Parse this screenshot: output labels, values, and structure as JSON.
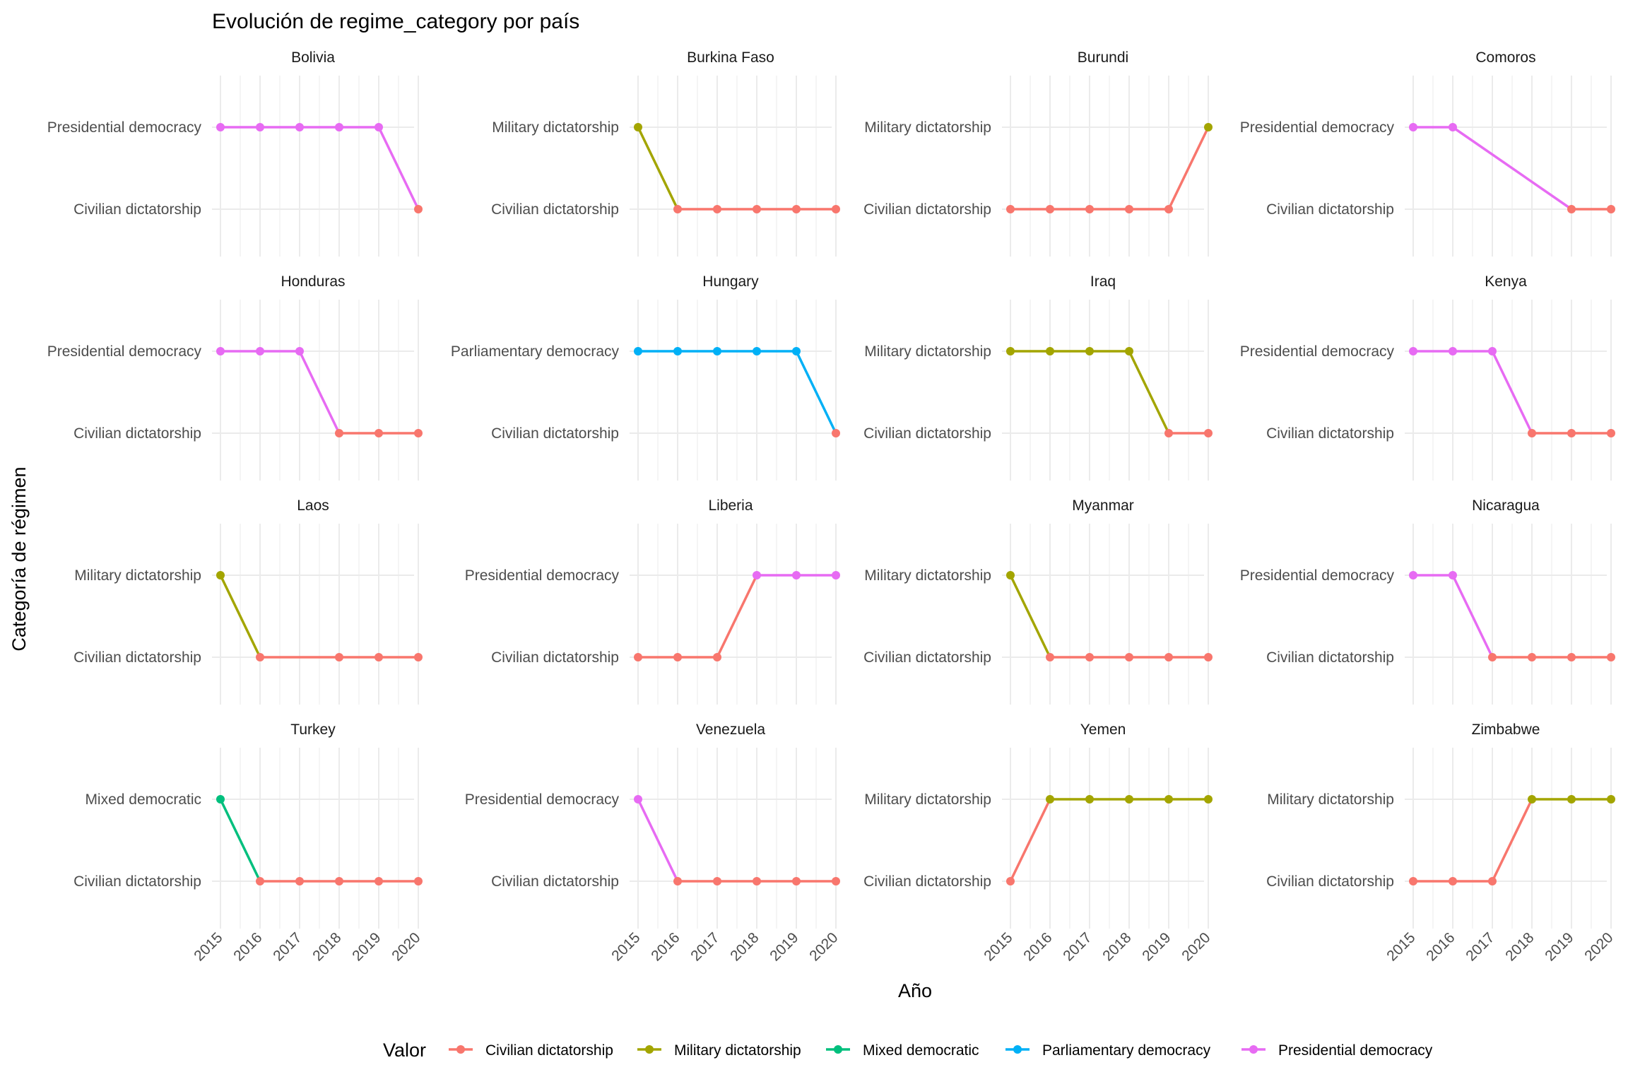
{
  "chart_data": {
    "type": "line",
    "title": "Evolución de regime_category por país",
    "xlabel": "Año",
    "ylabel": "Categoría de régimen",
    "x": [
      2015,
      2016,
      2017,
      2018,
      2019,
      2020
    ],
    "x_tick_labels": [
      "2015",
      "2016",
      "2017",
      "2018",
      "2019",
      "2020"
    ],
    "facet_layout": "4 rows x 4 columns, independent y scales",
    "grid": true,
    "legend": {
      "title": "Valor",
      "placement": "bottom",
      "entries": [
        {
          "label": "Civilian dictatorship",
          "color": "#F8766D"
        },
        {
          "label": "Military dictatorship",
          "color": "#A3A500"
        },
        {
          "label": "Mixed democratic",
          "color": "#00BF7D"
        },
        {
          "label": "Parliamentary democracy",
          "color": "#00B0F6"
        },
        {
          "label": "Presidential democracy",
          "color": "#E76BF3"
        }
      ]
    },
    "panels": [
      {
        "country": "Bolivia",
        "levels": [
          "Civilian dictatorship",
          "Presidential democracy"
        ],
        "values": [
          "Presidential democracy",
          "Presidential democracy",
          "Presidential democracy",
          "Presidential democracy",
          "Presidential democracy",
          "Civilian dictatorship"
        ]
      },
      {
        "country": "Burkina Faso",
        "levels": [
          "Civilian dictatorship",
          "Military dictatorship"
        ],
        "values": [
          "Military dictatorship",
          "Civilian dictatorship",
          "Civilian dictatorship",
          "Civilian dictatorship",
          "Civilian dictatorship",
          "Civilian dictatorship"
        ]
      },
      {
        "country": "Burundi",
        "levels": [
          "Civilian dictatorship",
          "Military dictatorship"
        ],
        "values": [
          "Civilian dictatorship",
          "Civilian dictatorship",
          "Civilian dictatorship",
          "Civilian dictatorship",
          "Civilian dictatorship",
          "Military dictatorship"
        ]
      },
      {
        "country": "Comoros",
        "levels": [
          "Civilian dictatorship",
          "Presidential democracy"
        ],
        "values": [
          "Presidential democracy",
          "Presidential democracy",
          null,
          null,
          "Civilian dictatorship",
          "Civilian dictatorship"
        ]
      },
      {
        "country": "Honduras",
        "levels": [
          "Civilian dictatorship",
          "Presidential democracy"
        ],
        "values": [
          "Presidential democracy",
          "Presidential democracy",
          "Presidential democracy",
          "Civilian dictatorship",
          "Civilian dictatorship",
          "Civilian dictatorship"
        ]
      },
      {
        "country": "Hungary",
        "levels": [
          "Civilian dictatorship",
          "Parliamentary democracy"
        ],
        "values": [
          "Parliamentary democracy",
          "Parliamentary democracy",
          "Parliamentary democracy",
          "Parliamentary democracy",
          "Parliamentary democracy",
          "Civilian dictatorship"
        ]
      },
      {
        "country": "Iraq",
        "levels": [
          "Civilian dictatorship",
          "Military dictatorship"
        ],
        "values": [
          "Military dictatorship",
          "Military dictatorship",
          "Military dictatorship",
          "Military dictatorship",
          "Civilian dictatorship",
          "Civilian dictatorship"
        ]
      },
      {
        "country": "Kenya",
        "levels": [
          "Civilian dictatorship",
          "Presidential democracy"
        ],
        "values": [
          "Presidential democracy",
          "Presidential democracy",
          "Presidential democracy",
          "Civilian dictatorship",
          "Civilian dictatorship",
          "Civilian dictatorship"
        ]
      },
      {
        "country": "Laos",
        "levels": [
          "Civilian dictatorship",
          "Military dictatorship"
        ],
        "values": [
          "Military dictatorship",
          "Civilian dictatorship",
          null,
          "Civilian dictatorship",
          "Civilian dictatorship",
          "Civilian dictatorship"
        ]
      },
      {
        "country": "Liberia",
        "levels": [
          "Civilian dictatorship",
          "Presidential democracy"
        ],
        "values": [
          "Civilian dictatorship",
          "Civilian dictatorship",
          "Civilian dictatorship",
          "Presidential democracy",
          "Presidential democracy",
          "Presidential democracy"
        ]
      },
      {
        "country": "Myanmar",
        "levels": [
          "Civilian dictatorship",
          "Military dictatorship"
        ],
        "values": [
          "Military dictatorship",
          "Civilian dictatorship",
          "Civilian dictatorship",
          "Civilian dictatorship",
          "Civilian dictatorship",
          "Civilian dictatorship"
        ]
      },
      {
        "country": "Nicaragua",
        "levels": [
          "Civilian dictatorship",
          "Presidential democracy"
        ],
        "values": [
          "Presidential democracy",
          "Presidential democracy",
          "Civilian dictatorship",
          "Civilian dictatorship",
          "Civilian dictatorship",
          "Civilian dictatorship"
        ]
      },
      {
        "country": "Turkey",
        "levels": [
          "Civilian dictatorship",
          "Mixed democratic"
        ],
        "values": [
          "Mixed democratic",
          "Civilian dictatorship",
          "Civilian dictatorship",
          "Civilian dictatorship",
          "Civilian dictatorship",
          "Civilian dictatorship"
        ]
      },
      {
        "country": "Venezuela",
        "levels": [
          "Civilian dictatorship",
          "Presidential democracy"
        ],
        "values": [
          "Presidential democracy",
          "Civilian dictatorship",
          "Civilian dictatorship",
          "Civilian dictatorship",
          "Civilian dictatorship",
          "Civilian dictatorship"
        ]
      },
      {
        "country": "Yemen",
        "levels": [
          "Civilian dictatorship",
          "Military dictatorship"
        ],
        "values": [
          "Civilian dictatorship",
          "Military dictatorship",
          "Military dictatorship",
          "Military dictatorship",
          "Military dictatorship",
          "Military dictatorship"
        ]
      },
      {
        "country": "Zimbabwe",
        "levels": [
          "Civilian dictatorship",
          "Military dictatorship"
        ],
        "values": [
          "Civilian dictatorship",
          "Civilian dictatorship",
          "Civilian dictatorship",
          "Military dictatorship",
          "Military dictatorship",
          "Military dictatorship"
        ]
      }
    ]
  }
}
